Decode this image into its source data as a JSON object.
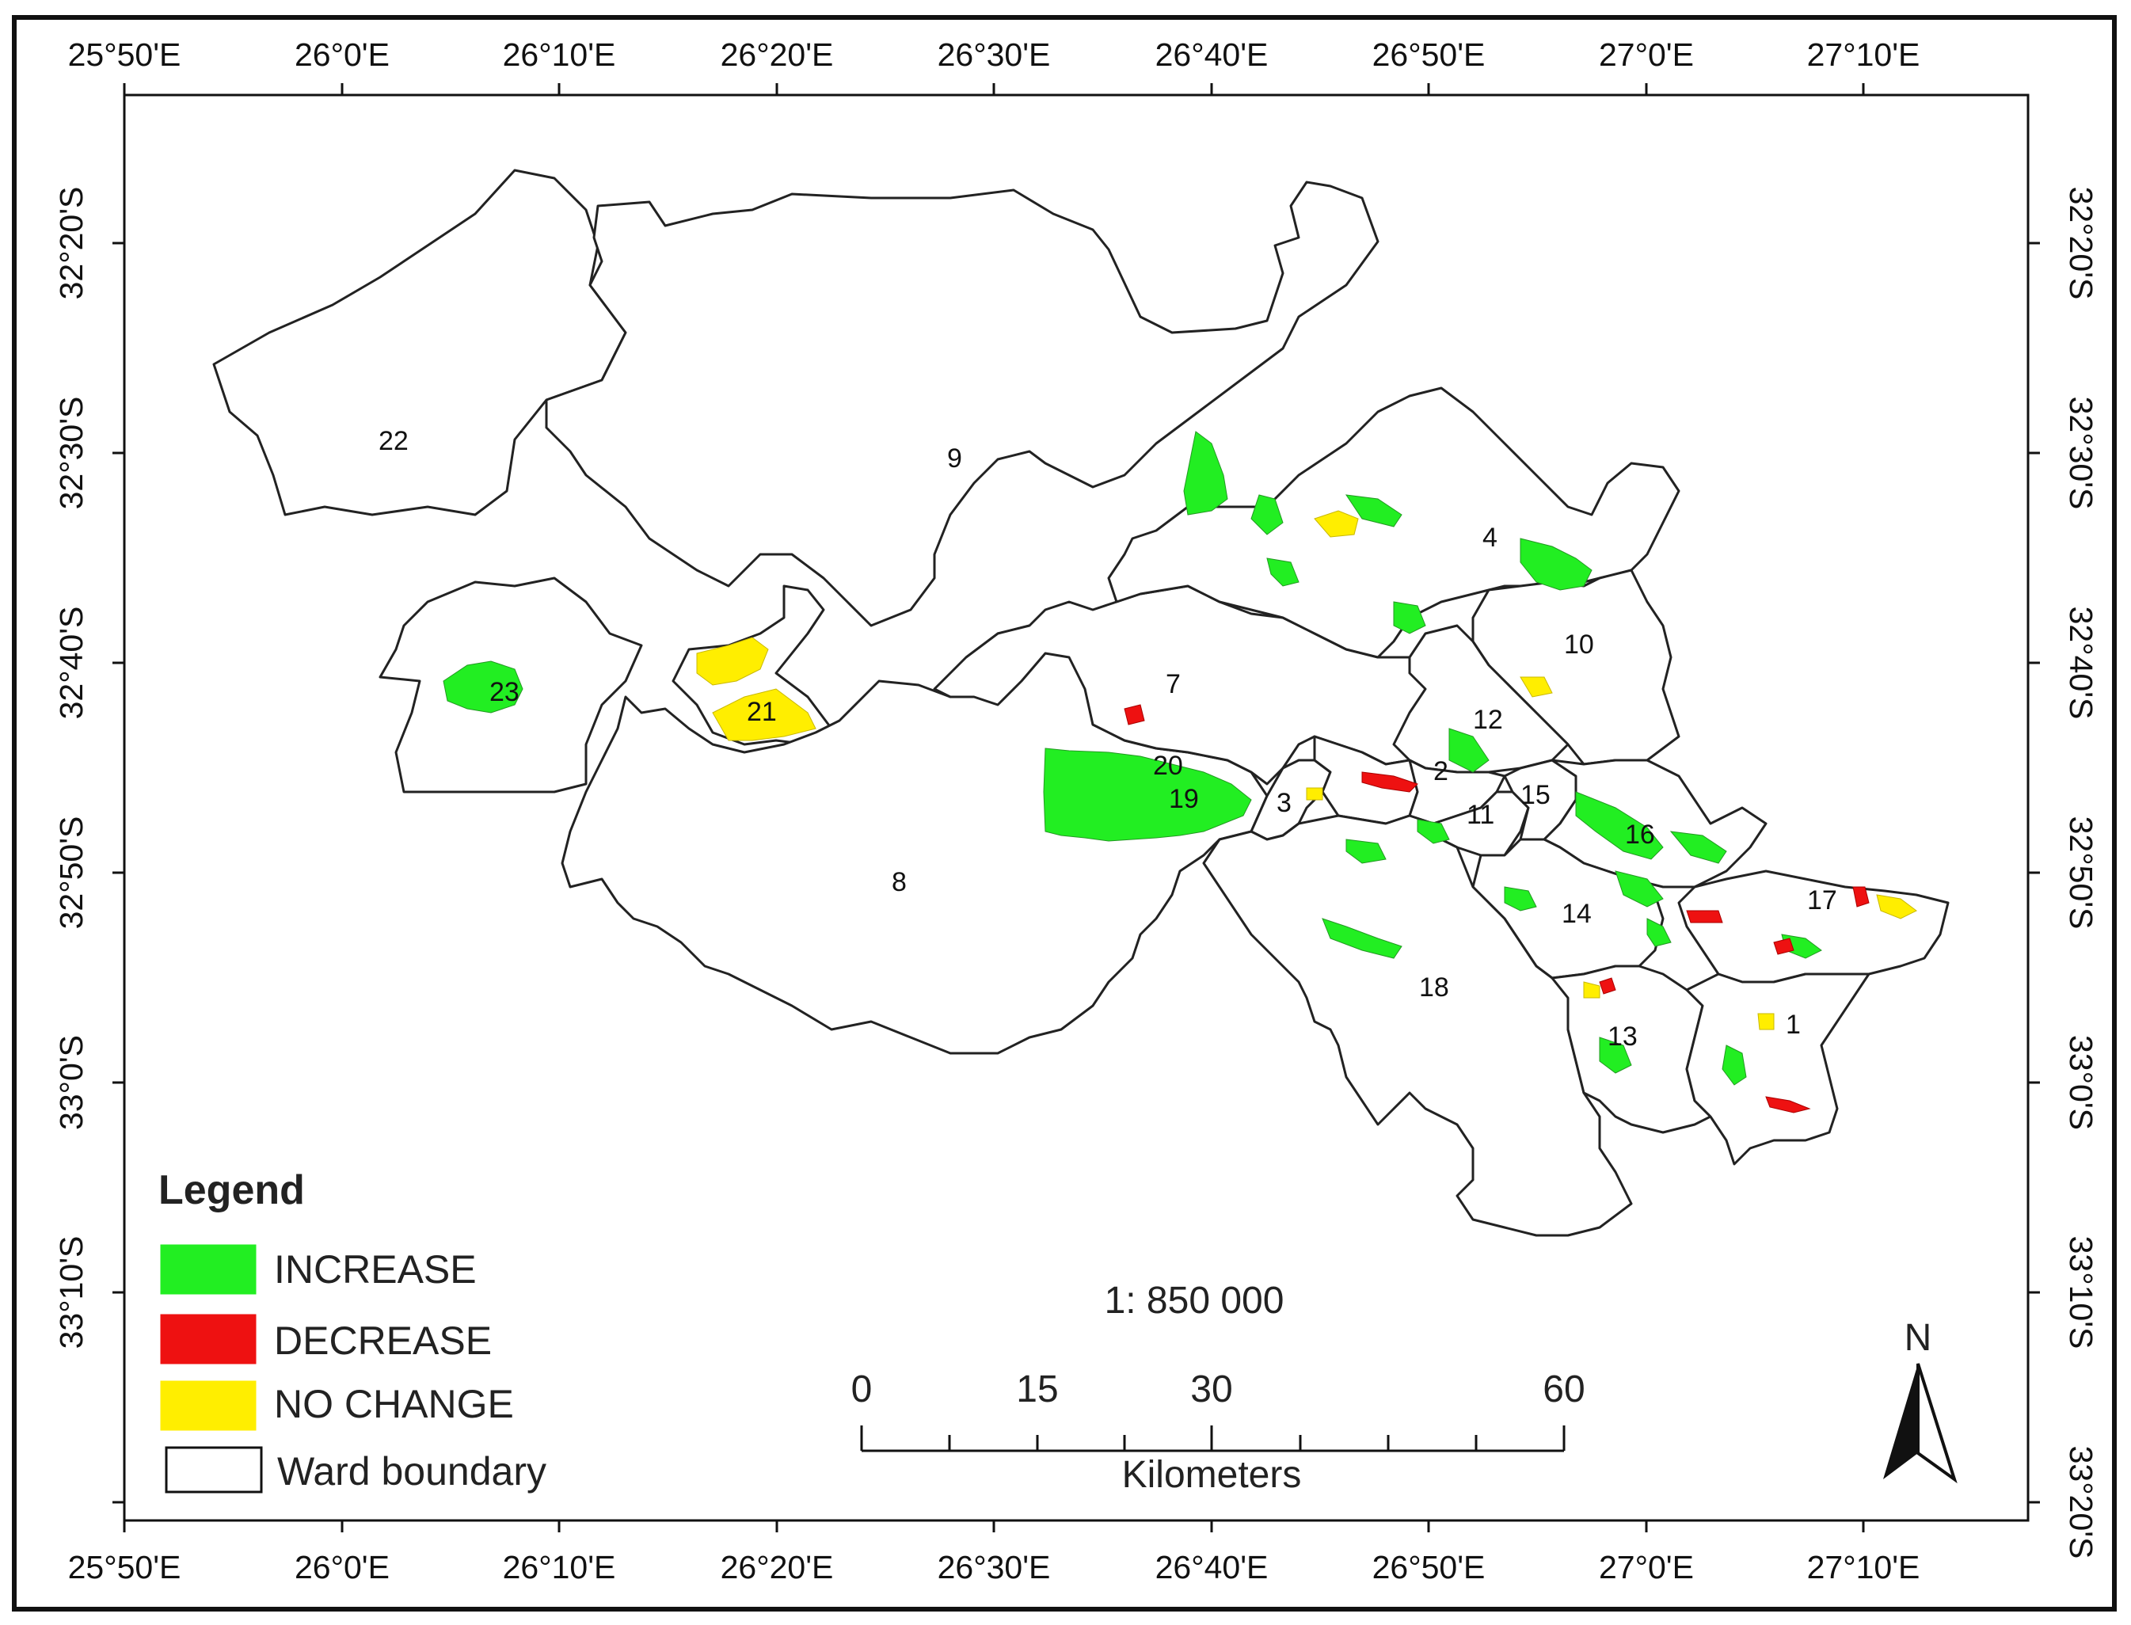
{
  "map": {
    "legend": {
      "title": "Legend",
      "items": [
        {
          "label": "INCREASE",
          "color": "#22ee22"
        },
        {
          "label": "DECREASE",
          "color": "#ee1111"
        },
        {
          "label": "NO CHANGE",
          "color": "#ffee00"
        },
        {
          "label": "Ward boundary",
          "color": "#ffffff"
        }
      ]
    },
    "scale": {
      "ratio": "1: 850 000",
      "unit": "Kilometers",
      "ticks": [
        "0",
        "15",
        "30",
        "60"
      ]
    },
    "north_label": "N",
    "lon_labels": [
      "25°50'E",
      "26°0'E",
      "26°10'E",
      "26°20'E",
      "26°30'E",
      "26°40'E",
      "26°50'E",
      "27°0'E",
      "27°10'E"
    ],
    "lat_labels": [
      "32°20'S",
      "32°30'S",
      "32°40'S",
      "32°50'S",
      "33°0'S",
      "33°10'S",
      "33°20'S"
    ],
    "wards": [
      "1",
      "2",
      "3",
      "4",
      "7",
      "8",
      "9",
      "10",
      "11",
      "12",
      "13",
      "14",
      "15",
      "16",
      "17",
      "18",
      "19",
      "20",
      "21",
      "22",
      "23"
    ]
  }
}
